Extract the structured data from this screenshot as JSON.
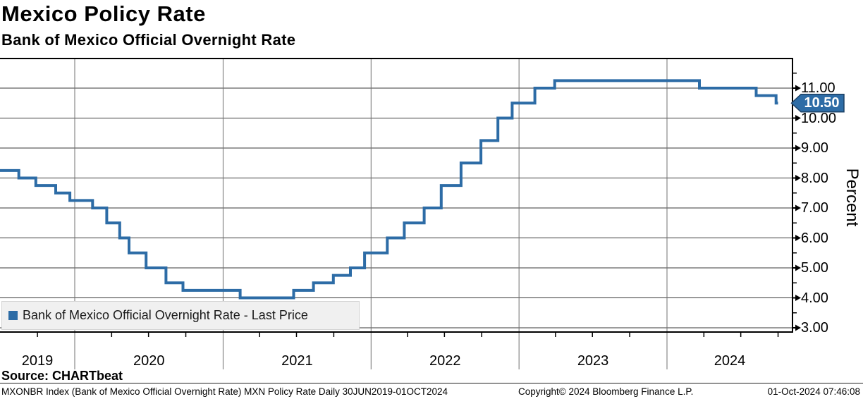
{
  "header": {
    "title": "Mexico Policy Rate",
    "subtitle": "Bank of Mexico Official Overnight Rate"
  },
  "legend": {
    "label": "Bank of Mexico Official Overnight Rate - Last Price",
    "swatch_color": "#2D6CA6"
  },
  "y_axis": {
    "title": "Percent",
    "tick_labels": [
      "11.00",
      "10.00",
      "9.00",
      "8.00",
      "7.00",
      "6.00",
      "5.00",
      "4.00",
      "3.00"
    ],
    "tick_values": [
      11,
      10,
      9,
      8,
      7,
      6,
      5,
      4,
      3
    ],
    "last_price_tag": "10.50"
  },
  "x_axis": {
    "year_labels": [
      "2019",
      "2020",
      "2021",
      "2022",
      "2023",
      "2024"
    ]
  },
  "source_line": "Source: CHARTbeat",
  "footer": {
    "security_info": "MXONBR Index (Bank of Mexico Official Overnight Rate) MXN Policy Rate  Daily 30JUN2019-01OCT2024",
    "copyright": "Copyright© 2024 Bloomberg Finance L.P.",
    "timestamp": "01-Oct-2024 07:46:08"
  },
  "colors": {
    "line": "#2D6CA6",
    "tag_fill": "#2D6CA6",
    "tag_border": "#1B4064",
    "grid_horizontal": "#3a3a3a",
    "grid_vertical": "#707070",
    "axis": "#000000",
    "legend_bg": "#F0F0F0"
  },
  "chart_data": {
    "type": "line",
    "step": "after",
    "title": "Mexico Policy Rate",
    "subtitle": "Bank of Mexico Official Overnight Rate",
    "ylabel": "Percent",
    "ylim": [
      2.86,
      12.0
    ],
    "y_major_ticks": [
      3,
      4,
      5,
      6,
      7,
      8,
      9,
      10,
      11
    ],
    "y_minor_step": 0.5,
    "x_range": [
      "2019-06-30",
      "2024-11-06"
    ],
    "x_year_gridlines": [
      2020,
      2021,
      2022,
      2023,
      2024
    ],
    "x_minor_ticks": "quarterly",
    "legend_position": "bottom-left",
    "last_price": 10.5,
    "series": [
      {
        "name": "Bank of Mexico Official Overnight Rate - Last Price",
        "color": "#2D6CA6",
        "points": [
          [
            "2019-06-30",
            8.25
          ],
          [
            "2019-08-16",
            8.0
          ],
          [
            "2019-09-27",
            7.75
          ],
          [
            "2019-11-15",
            7.5
          ],
          [
            "2019-12-20",
            7.25
          ],
          [
            "2020-02-14",
            7.0
          ],
          [
            "2020-03-20",
            6.5
          ],
          [
            "2020-04-21",
            6.0
          ],
          [
            "2020-05-14",
            5.5
          ],
          [
            "2020-06-25",
            5.0
          ],
          [
            "2020-08-13",
            4.5
          ],
          [
            "2020-09-24",
            4.25
          ],
          [
            "2021-02-12",
            4.0
          ],
          [
            "2021-06-24",
            4.25
          ],
          [
            "2021-08-12",
            4.5
          ],
          [
            "2021-09-30",
            4.75
          ],
          [
            "2021-11-11",
            5.0
          ],
          [
            "2021-12-16",
            5.5
          ],
          [
            "2022-02-10",
            6.0
          ],
          [
            "2022-03-24",
            6.5
          ],
          [
            "2022-05-12",
            7.0
          ],
          [
            "2022-06-23",
            7.75
          ],
          [
            "2022-08-11",
            8.5
          ],
          [
            "2022-09-29",
            9.25
          ],
          [
            "2022-11-10",
            10.0
          ],
          [
            "2022-12-15",
            10.5
          ],
          [
            "2023-02-09",
            11.0
          ],
          [
            "2023-03-30",
            11.25
          ],
          [
            "2024-03-21",
            11.0
          ],
          [
            "2024-08-08",
            10.75
          ],
          [
            "2024-09-26",
            10.5
          ],
          [
            "2024-10-01",
            10.5
          ]
        ]
      }
    ]
  }
}
